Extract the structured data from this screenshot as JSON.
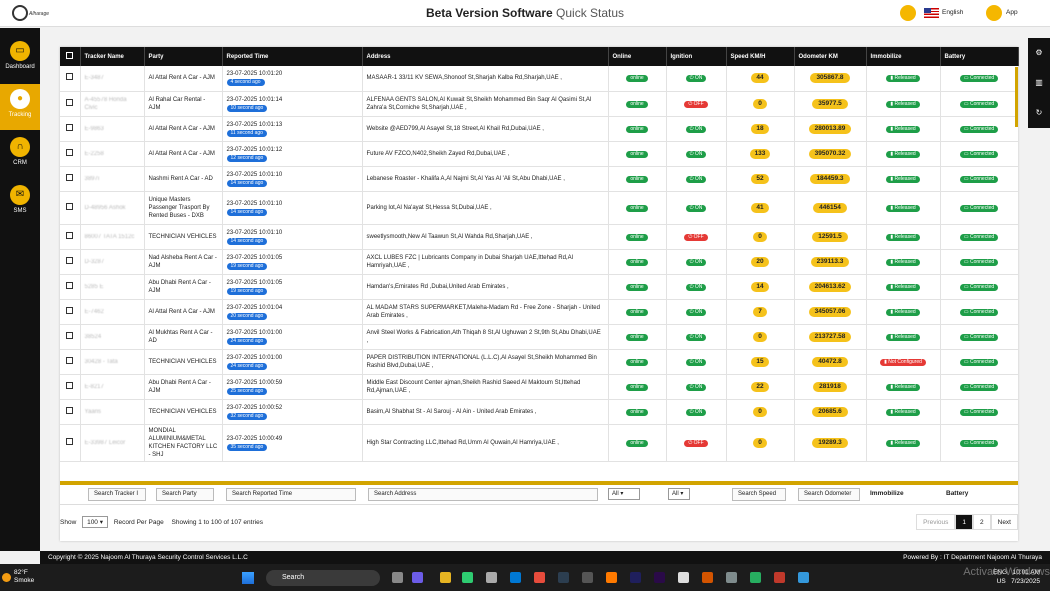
{
  "header": {
    "logo_text": "Alharage",
    "title_bold": "Beta Version Software",
    "title_rest": "Quick Status",
    "language": "English",
    "app_label": "App"
  },
  "sidebar": [
    {
      "label": "Dashboard",
      "icon": "monitor-icon"
    },
    {
      "label": "Tracking",
      "icon": "location-pin-icon"
    },
    {
      "label": "CRM",
      "icon": "headset-icon"
    },
    {
      "label": "SMS",
      "icon": "envelope-icon"
    }
  ],
  "columns": [
    "Tracker Name",
    "Party",
    "Reported Time",
    "Address",
    "Online",
    "Ignition",
    "Speed KM/H",
    "Odometer KM",
    "Immobilize",
    "Battery"
  ],
  "rows": [
    {
      "tracker": "E-3487",
      "party": "Al Attal Rent A Car - AJM",
      "time": "23-07-2025 10:01:20",
      "ago": "4 second ago",
      "address": "MASAAR-1 33/11 KV SEWA,Shonoof St,Sharjah Kalba Rd,Sharjah,UAE ,",
      "online": "online",
      "ignition": "ON",
      "speed": "44",
      "odometer": "305867.8",
      "immobilize": "Released",
      "battery": "Connected"
    },
    {
      "tracker": "A-45578 Honda Civic",
      "party": "Al Rahal Car Rental - AJM",
      "time": "23-07-2025 10:01:14",
      "ago": "10 second ago",
      "address": "ALFENAA GENTS SALON,Al Kuwait St,Sheikh Mohammed Bin Saqr Al Qasimi St,Al Zahra'a St,Corniche St,Sharjah,UAE ,",
      "online": "online",
      "ignition": "OFF",
      "speed": "0",
      "odometer": "35977.5",
      "immobilize": "Released",
      "battery": "Connected"
    },
    {
      "tracker": "E-9863",
      "party": "Al Attal Rent A Car - AJM",
      "time": "23-07-2025 10:01:13",
      "ago": "11 second ago",
      "address": "Website @AED799,Al Asayel St,18 Street,Al Khail Rd,Dubai,UAE ,",
      "online": "online",
      "ignition": "ON",
      "speed": "18",
      "odometer": "280013.89",
      "immobilize": "Released",
      "battery": "Connected"
    },
    {
      "tracker": "E-2258",
      "party": "Al Attal Rent A Car - AJM",
      "time": "23-07-2025 10:01:12",
      "ago": "12 second ago",
      "address": "Future AV FZCO,N402,Sheikh Zayed Rd,Dubai,UAE ,",
      "online": "online",
      "ignition": "ON",
      "speed": "133",
      "odometer": "395070.32",
      "immobilize": "Released",
      "battery": "Connected"
    },
    {
      "tracker": "3897i",
      "party": "Nashmi Rent A Car - AD",
      "time": "23-07-2025 10:01:10",
      "ago": "14 second ago",
      "address": "Lebanese Roaster - Khalifa A,Al Najmi St,Al Yas Al 'Ali St,Abu Dhabi,UAE ,",
      "online": "online",
      "ignition": "ON",
      "speed": "52",
      "odometer": "184459.3",
      "immobilize": "Released",
      "battery": "Connected"
    },
    {
      "tracker": "D-48956 Ashok",
      "party": "Unique Masters Passenger Trasport By Rented Buses - DXB",
      "time": "23-07-2025 10:01:10",
      "ago": "14 second ago",
      "address": "Parking lot,Al Na'ayat St,Hessa St,Dubai,UAE ,",
      "online": "online",
      "ignition": "ON",
      "speed": "41",
      "odometer": "446154",
      "immobilize": "Released",
      "battery": "Connected"
    },
    {
      "tracker": "86007 TATA 1512c",
      "party": "TECHNICIAN VEHICLES",
      "time": "23-07-2025 10:01:10",
      "ago": "14 second ago",
      "address": "sweetlysmooth,New Al Taawun St,Al Wahda Rd,Sharjah,UAE ,",
      "online": "online",
      "ignition": "OFF",
      "speed": "0",
      "odometer": "12591.5",
      "immobilize": "Released",
      "battery": "Connected"
    },
    {
      "tracker": "D-3287",
      "party": "Nad Alsheba Rent A Car - AJM",
      "time": "23-07-2025 10:01:05",
      "ago": "19 second ago",
      "address": "AXCL LUBES FZC | Lubricants Company in Dubai Sharjah UAE,Ittehad Rd,Al Hamriyah,UAE ,",
      "online": "online",
      "ignition": "ON",
      "speed": "20",
      "odometer": "239113.3",
      "immobilize": "Released",
      "battery": "Connected"
    },
    {
      "tracker": "5285 E",
      "party": "Abu Dhabi Rent A Car - AJM",
      "time": "23-07-2025 10:01:05",
      "ago": "19 second ago",
      "address": "Hamdan's,Emirates Rd ,Dubai,United Arab Emirates ,",
      "online": "online",
      "ignition": "ON",
      "speed": "14",
      "odometer": "204613.62",
      "immobilize": "Released",
      "battery": "Connected"
    },
    {
      "tracker": "E-7462",
      "party": "Al Attal Rent A Car - AJM",
      "time": "23-07-2025 10:01:04",
      "ago": "20 second ago",
      "address": "AL MADAM STARS SUPERMARKET,Maleha-Madam Rd - Free Zone - Sharjah - United Arab Emirates ,",
      "online": "online",
      "ignition": "ON",
      "speed": "7",
      "odometer": "345057.06",
      "immobilize": "Released",
      "battery": "Connected"
    },
    {
      "tracker": "38524",
      "party": "Al Mukhtas Rent A Car - AD",
      "time": "23-07-2025 10:01:00",
      "ago": "24 second ago",
      "address": "Anvil Steel Works & Fabrication,Ath Thiqah 8 St,Al Ughuwan 2 St,9th St,Abu Dhabi,UAE ,",
      "online": "online",
      "ignition": "ON",
      "speed": "0",
      "odometer": "213727.58",
      "immobilize": "Released",
      "battery": "Connected"
    },
    {
      "tracker": "30428 - Tata",
      "party": "TECHNICIAN VEHICLES",
      "time": "23-07-2025 10:01:00",
      "ago": "24 second ago",
      "address": "PAPER DISTRIBUTION INTERNATIONAL (L.L.C),Al Asayel St,Sheikh Mohammed Bin Rashid Blvd,Dubai,UAE ,",
      "online": "online",
      "ignition": "ON",
      "speed": "15",
      "odometer": "40472.8",
      "immobilize": "Not Configured",
      "battery": "Connected"
    },
    {
      "tracker": "E-8217",
      "party": "Abu Dhabi Rent A Car - AJM",
      "time": "23-07-2025 10:00:59",
      "ago": "25 second ago",
      "address": "Middle East Discount Center ajman,Sheikh Rashid Saeed Al Maktoum St,Ittehad Rd,Ajman,UAE ,",
      "online": "online",
      "ignition": "ON",
      "speed": "22",
      "odometer": "281918",
      "immobilize": "Released",
      "battery": "Connected"
    },
    {
      "tracker": "Yaaris",
      "party": "TECHNICIAN VEHICLES",
      "time": "23-07-2025 10:00:52",
      "ago": "32 second ago",
      "address": "Basim,Al Shabhat St - Al Sarouj - Al Ain - United Arab Emirates ,",
      "online": "online",
      "ignition": "ON",
      "speed": "0",
      "odometer": "20685.6",
      "immobilize": "Released",
      "battery": "Connected"
    },
    {
      "tracker": "E-33987 Leicor",
      "party": "MONDIAL ALUMINIUM&METAL KITCHEN FACTORY LLC - SHJ",
      "time": "23-07-2025 10:00:49",
      "ago": "35 second ago",
      "address": "High Star Contracting LLC,Ittehad Rd,Umm Al Quwain,Al Hamriya,UAE ,",
      "online": "online",
      "ignition": "OFF",
      "speed": "0",
      "odometer": "19289.3",
      "immobilize": "Released",
      "battery": "Connected"
    }
  ],
  "filters": {
    "tracker": "Search Tracker I",
    "party": "Search Party",
    "time": "Search Reported Time",
    "address": "Search Address",
    "online": "All",
    "ignition": "All",
    "speed": "Search Speed",
    "odometer": "Search Odometer",
    "immobilize": "Immobilize",
    "battery": "Battery"
  },
  "table_info": {
    "show_label": "Show",
    "page_size": "100",
    "per_page_label": "Record Per Page",
    "entries": "Showing 1 to 100 of 107 entries"
  },
  "pager": {
    "previous": "Previous",
    "p1": "1",
    "p2": "2",
    "next": "Next"
  },
  "footer": {
    "left": "Copyright © 2025 Najoom Al Thuraya Security Control Services L.L.C",
    "right": "Powered By : IT Department Najoom Al Thuraya"
  },
  "taskbar": {
    "temp": "82°F",
    "cond": "Smoke",
    "search": "Search",
    "lang1": "ENG",
    "lang2": "US",
    "time": "10:01 AM",
    "date": "7/23/2025",
    "activate": "Activate Windows"
  }
}
